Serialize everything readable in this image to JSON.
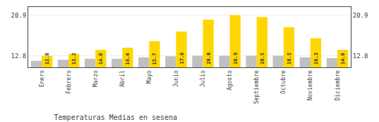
{
  "chart_data": {
    "type": "bar",
    "title": "Temperaturas Medias en sesena",
    "categories": [
      "Enero",
      "Febrero",
      "Marzo",
      "Abril",
      "Mayo",
      "Junio",
      "Julio",
      "Agosto",
      "Septiembre",
      "Octubre",
      "Noviembre",
      "Diciembre"
    ],
    "series": [
      {
        "color": "#C0C0C0",
        "values": [
          11.8,
          12.0,
          12.2,
          12.2,
          12.5,
          12.7,
          12.8,
          12.8,
          12.8,
          12.8,
          12.5,
          12.3
        ]
      },
      {
        "color": "#FFD700",
        "values": [
          12.8,
          13.2,
          14.0,
          14.4,
          15.7,
          17.6,
          20.0,
          20.9,
          20.5,
          18.5,
          16.3,
          14.0
        ],
        "value_labels": [
          "12.8",
          "13.2",
          "14.0",
          "14.4",
          "15.7",
          "17.6",
          "20.0",
          "20.9",
          "20.5",
          "18.5",
          "16.3",
          "14.0"
        ],
        "data_labels": true
      }
    ],
    "ylim": [
      10.5,
      22.5
    ],
    "yticks": [
      12.8,
      20.9
    ],
    "y2lim": [
      10.5,
      22.5
    ],
    "y2ticks": [
      12.8,
      20.9
    ],
    "grid": true
  }
}
